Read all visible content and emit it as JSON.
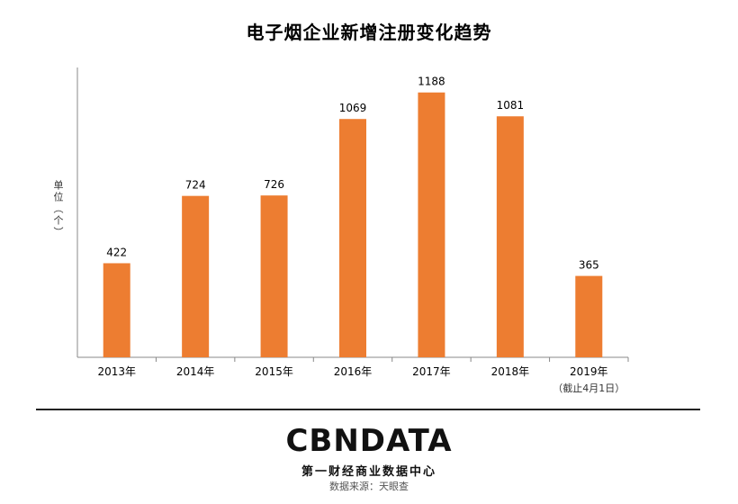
{
  "chart_data": {
    "type": "bar",
    "title": "电子烟企业新增注册变化趋势",
    "ylabel": "单位（个）",
    "categories": [
      "2013年",
      "2014年",
      "2015年",
      "2016年",
      "2017年",
      "2018年",
      "2019年"
    ],
    "category_notes": [
      "",
      "",
      "",
      "",
      "",
      "",
      "（截止4月1日）"
    ],
    "values": [
      422,
      724,
      726,
      1069,
      1188,
      1081,
      365
    ],
    "ylim": [
      0,
      1300
    ],
    "bar_color": "#ED7D31",
    "grid": false,
    "legend": "none"
  },
  "logo": {
    "text": "CBNDATA",
    "subtitle": "第一财经商业数据中心"
  },
  "source": "数据来源：天眼查"
}
